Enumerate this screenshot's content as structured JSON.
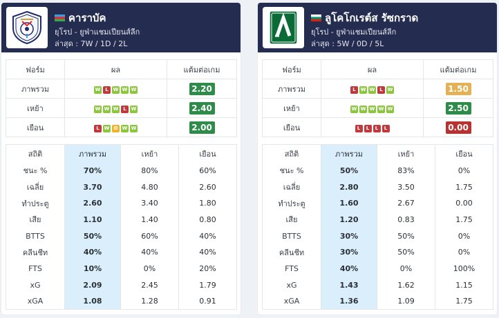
{
  "form_headers": {
    "form": "ฟอร์ม",
    "results": "ผล",
    "ppg": "แต้มต่อเกม"
  },
  "form_rows": [
    "ภาพรวม",
    "เหย้า",
    "เยือน"
  ],
  "stats_headers": {
    "stat": "สถิติ",
    "overall": "ภาพรวม",
    "home": "เหย้า",
    "away": "เยือน"
  },
  "stat_labels": [
    "ชนะ %",
    "เฉลี่ย",
    "ทำประตู",
    "เสีย",
    "BTTS",
    "คลีนชีท",
    "FTS",
    "xG",
    "xGA"
  ],
  "teams": [
    {
      "name": "คาราบัค",
      "flag": "azerbaijan",
      "league": "ยุโรป - ยูฟ่าแชมเปียนส์ลีก",
      "recent": "ล่าสุด : 7W / 1D / 2L",
      "logo_icon": "qarabag-crest-icon",
      "form": [
        {
          "results": [
            "W",
            "L",
            "W",
            "W",
            "W"
          ],
          "ppg": "2.20",
          "ppg_color": "#2e8b4a"
        },
        {
          "results": [
            "W",
            "W",
            "W",
            "L",
            "W"
          ],
          "ppg": "2.40",
          "ppg_color": "#2e8b4a"
        },
        {
          "results": [
            "L",
            "W",
            "D",
            "W",
            "W"
          ],
          "ppg": "2.00",
          "ppg_color": "#2e8b4a"
        }
      ],
      "stats": [
        [
          "70%",
          "80%",
          "60%"
        ],
        [
          "3.70",
          "4.80",
          "2.60"
        ],
        [
          "2.60",
          "3.40",
          "1.80"
        ],
        [
          "1.10",
          "1.40",
          "0.80"
        ],
        [
          "50%",
          "60%",
          "40%"
        ],
        [
          "40%",
          "40%",
          "40%"
        ],
        [
          "10%",
          "0%",
          "20%"
        ],
        [
          "2.09",
          "2.45",
          "1.79"
        ],
        [
          "1.08",
          "1.28",
          "0.91"
        ]
      ]
    },
    {
      "name": "ลูโคโกเรต์ส รัซกราด",
      "flag": "bulgaria",
      "league": "ยุโรป - ยูฟ่าแชมเปียนส์ลีก",
      "recent": "ล่าสุด : 5W / 0D / 5L",
      "logo_icon": "ludogorets-crest-icon",
      "form": [
        {
          "results": [
            "L",
            "W",
            "W",
            "L",
            "W"
          ],
          "ppg": "1.50",
          "ppg_color": "#e4b156"
        },
        {
          "results": [
            "W",
            "W",
            "W",
            "W",
            "W"
          ],
          "ppg": "2.50",
          "ppg_color": "#2e8b4a"
        },
        {
          "results": [
            "L",
            "L",
            "L",
            "L"
          ],
          "ppg": "0.00",
          "ppg_color": "#b83232"
        }
      ],
      "stats": [
        [
          "50%",
          "83%",
          "0%"
        ],
        [
          "2.80",
          "3.50",
          "1.75"
        ],
        [
          "1.60",
          "2.67",
          "0.00"
        ],
        [
          "1.20",
          "0.83",
          "1.75"
        ],
        [
          "30%",
          "50%",
          "0%"
        ],
        [
          "30%",
          "50%",
          "0%"
        ],
        [
          "40%",
          "0%",
          "100%"
        ],
        [
          "1.43",
          "1.62",
          "1.15"
        ],
        [
          "1.36",
          "1.09",
          "1.75"
        ]
      ]
    }
  ]
}
